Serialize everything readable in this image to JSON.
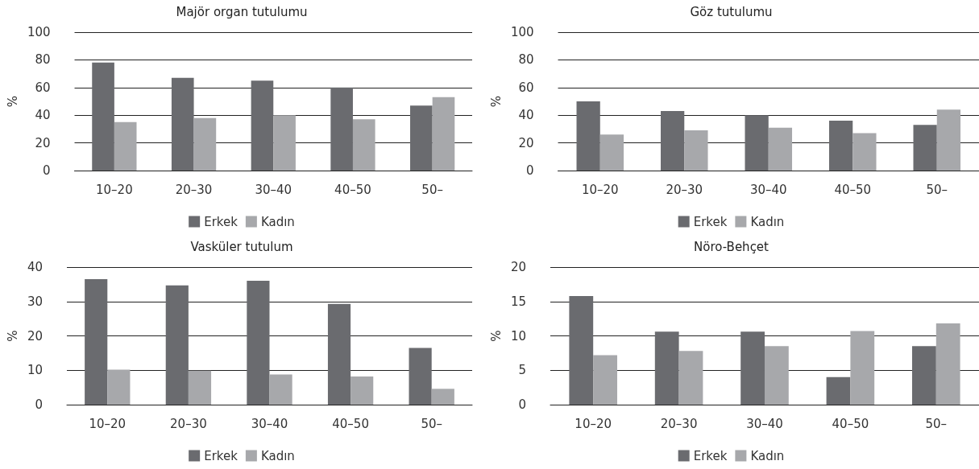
{
  "chart_data": [
    {
      "type": "bar",
      "title": "Majör organ tutulumu",
      "ylabel": "%",
      "categories": [
        "10–20",
        "20–30",
        "30–40",
        "40–50",
        "50–"
      ],
      "series": [
        {
          "name": "Erkek",
          "color": "#6a6b6f",
          "values": [
            78,
            67,
            65,
            60,
            47
          ]
        },
        {
          "name": "Kadın",
          "color": "#a7a8ab",
          "values": [
            35,
            38,
            40,
            37,
            53
          ]
        }
      ],
      "ylim": [
        0,
        100
      ],
      "yticks": [
        0,
        20,
        40,
        60,
        80,
        100
      ],
      "grid": "y",
      "legend": "bottom"
    },
    {
      "type": "bar",
      "title": "Göz tutulumu",
      "ylabel": "%",
      "categories": [
        "10–20",
        "20–30",
        "30–40",
        "40–50",
        "50–"
      ],
      "series": [
        {
          "name": "Erkek",
          "color": "#6a6b6f",
          "values": [
            50,
            43,
            40,
            36,
            33
          ]
        },
        {
          "name": "Kadın",
          "color": "#a7a8ab",
          "values": [
            26,
            29,
            31,
            27,
            44
          ]
        }
      ],
      "ylim": [
        0,
        100
      ],
      "yticks": [
        0,
        20,
        40,
        60,
        80,
        100
      ],
      "grid": "y",
      "legend": "bottom"
    },
    {
      "type": "bar",
      "title": "Vasküler tutulum",
      "ylabel": "%",
      "categories": [
        "10–20",
        "20–30",
        "30–40",
        "40–50",
        "50–"
      ],
      "series": [
        {
          "name": "Erkek",
          "color": "#6a6b6f",
          "values": [
            36.5,
            34.7,
            36,
            29.3,
            16.5
          ]
        },
        {
          "name": "Kadın",
          "color": "#a7a8ab",
          "values": [
            10.2,
            9.9,
            8.8,
            8.2,
            4.6
          ]
        }
      ],
      "ylim": [
        0,
        40
      ],
      "yticks": [
        0,
        10,
        20,
        30,
        40
      ],
      "grid": "y",
      "legend": "bottom"
    },
    {
      "type": "bar",
      "title": "Nöro-Behçet",
      "ylabel": "%",
      "categories": [
        "10–20",
        "20–30",
        "30–40",
        "40–50",
        "50–"
      ],
      "series": [
        {
          "name": "Erkek",
          "color": "#6a6b6f",
          "values": [
            15.8,
            10.6,
            10.6,
            4,
            8.5
          ]
        },
        {
          "name": "Kadın",
          "color": "#a7a8ab",
          "values": [
            7.2,
            7.8,
            8.5,
            10.7,
            11.8
          ]
        }
      ],
      "ylim": [
        0,
        20
      ],
      "yticks": [
        0,
        5,
        10,
        15,
        20
      ],
      "grid": "y",
      "legend": "bottom"
    }
  ]
}
